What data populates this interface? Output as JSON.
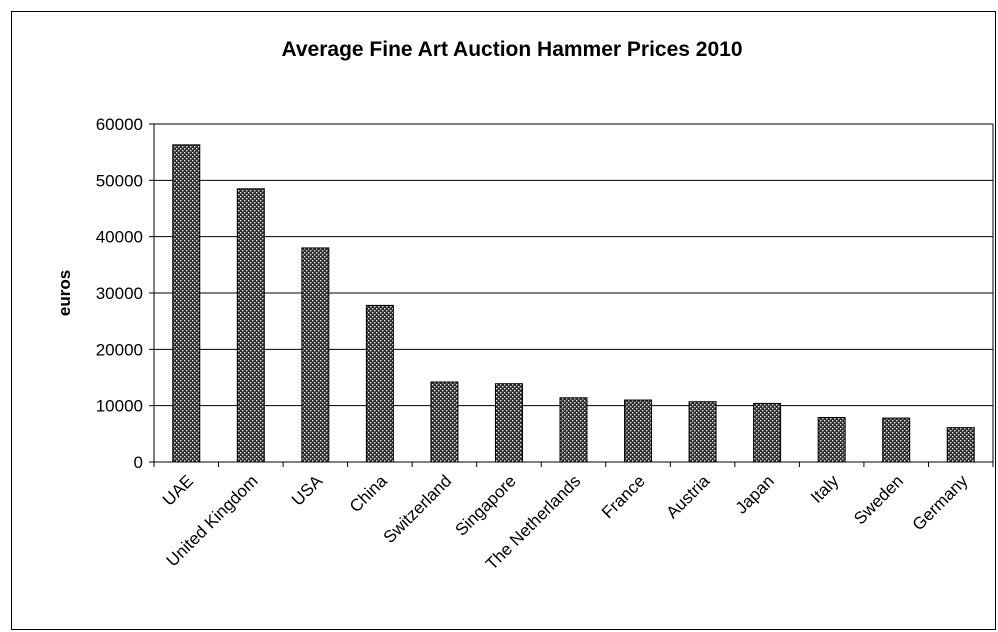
{
  "chart_data": {
    "type": "bar",
    "title": "Average Fine Art Auction Hammer Prices 2010",
    "xlabel": "",
    "ylabel": "euros",
    "ylim": [
      0,
      60000
    ],
    "yticks": [
      0,
      10000,
      20000,
      30000,
      40000,
      50000,
      60000
    ],
    "grid": true,
    "legend": "none",
    "bar_fill": "dotted dark pattern",
    "categories": [
      "UAE",
      "United Kingdom",
      "USA",
      "China",
      "Switzerland",
      "Singapore",
      "The Netherlands",
      "France",
      "Austria",
      "Japan",
      "Italy",
      "Sweden",
      "Germany"
    ],
    "values": [
      56300,
      48500,
      38000,
      27800,
      14200,
      13900,
      11400,
      11000,
      10700,
      10400,
      7900,
      7800,
      6100
    ]
  }
}
